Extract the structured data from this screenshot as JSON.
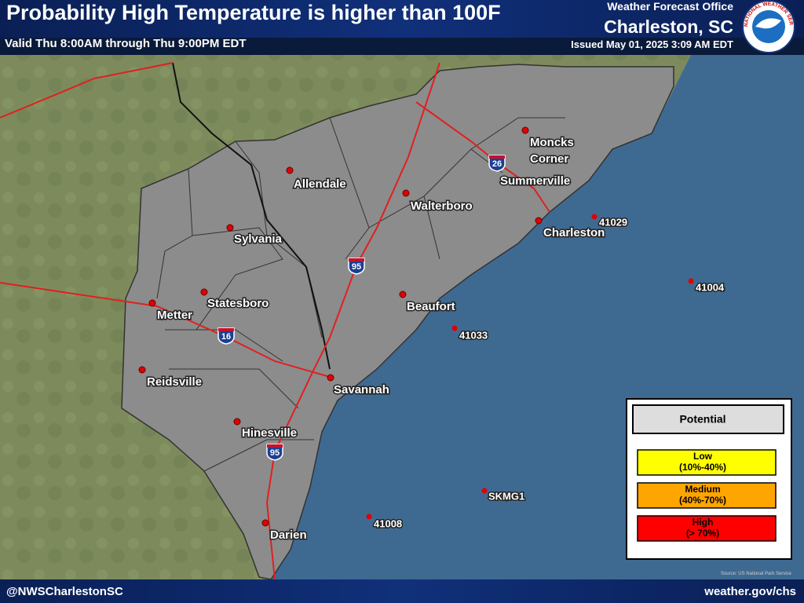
{
  "header": {
    "title": "Probability High Temperature is higher than 100F",
    "valid": "Valid Thu 8:00AM through Thu 9:00PM EDT",
    "office": "Weather Forecast Office",
    "location": "Charleston, SC",
    "issued": "Issued May 01, 2025 3:09 AM EDT",
    "logo_text": "NATIONAL WEATHER SERVICE"
  },
  "map": {
    "cities": [
      {
        "lines": [
          "Allendale"
        ]
      },
      {
        "lines": [
          "Sylvania"
        ]
      },
      {
        "lines": [
          "Metter"
        ]
      },
      {
        "lines": [
          "Statesboro"
        ]
      },
      {
        "lines": [
          "Reidsville"
        ]
      },
      {
        "lines": [
          "Hinesville"
        ]
      },
      {
        "lines": [
          "Darien"
        ]
      },
      {
        "lines": [
          "Savannah"
        ]
      },
      {
        "lines": [
          "Beaufort"
        ]
      },
      {
        "lines": [
          "Walterboro"
        ]
      },
      {
        "lines": [
          "Summerville"
        ]
      },
      {
        "lines": [
          "Moncks",
          "Corner"
        ]
      },
      {
        "lines": [
          "Charleston"
        ]
      }
    ],
    "buoys": [
      "41029",
      "41004",
      "41033",
      "SKMG1",
      "41008"
    ],
    "interstates": [
      "26",
      "16",
      "95",
      "95"
    ],
    "source": "Source: US National Park Service"
  },
  "legend": {
    "title": "Potential",
    "items": [
      {
        "label": "Low",
        "range": "(10%-40%)",
        "color": "#ffff00"
      },
      {
        "label": "Medium",
        "range": "(40%-70%)",
        "color": "#ffa500"
      },
      {
        "label": "High",
        "range": "(> 70%)",
        "color": "#ff0000"
      }
    ]
  },
  "footer": {
    "left": "@NWSCharlestonSC",
    "right": "weather.gov/chs"
  }
}
